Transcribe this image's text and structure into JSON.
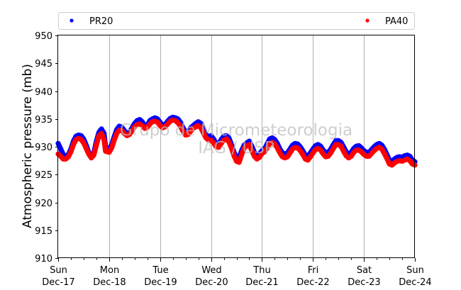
{
  "chart_data": {
    "type": "scatter",
    "ylabel": "Atmospheric pressure (mb)",
    "ylim": [
      910,
      950
    ],
    "yticks": [
      910,
      915,
      920,
      925,
      930,
      935,
      940,
      945,
      950
    ],
    "xlim_days": [
      17,
      24
    ],
    "xticks": [
      {
        "day": 17,
        "weekday": "Sun",
        "date": "Dec-17"
      },
      {
        "day": 18,
        "weekday": "Mon",
        "date": "Dec-18"
      },
      {
        "day": 19,
        "weekday": "Tue",
        "date": "Dec-19"
      },
      {
        "day": 20,
        "weekday": "Wed",
        "date": "Dec-20"
      },
      {
        "day": 21,
        "weekday": "Thu",
        "date": "Dec-21"
      },
      {
        "day": 22,
        "weekday": "Fri",
        "date": "Dec-22"
      },
      {
        "day": 23,
        "weekday": "Sat",
        "date": "Dec-23"
      },
      {
        "day": 24,
        "weekday": "Sun",
        "date": "Dec-24"
      }
    ],
    "grid": "vertical",
    "legend_position": "top",
    "watermark": [
      "Grupo de Micrometeorologia",
      "IAG / USP"
    ],
    "series": [
      {
        "name": "PR20",
        "color": "#0000ff",
        "points": [
          [
            17.0,
            930.6
          ],
          [
            17.05,
            929.6
          ],
          [
            17.1,
            928.6
          ],
          [
            17.15,
            928.3
          ],
          [
            17.2,
            928.6
          ],
          [
            17.25,
            929.6
          ],
          [
            17.3,
            931.0
          ],
          [
            17.35,
            931.9
          ],
          [
            17.4,
            932.1
          ],
          [
            17.45,
            932.0
          ],
          [
            17.5,
            931.4
          ],
          [
            17.55,
            930.3
          ],
          [
            17.6,
            929.0
          ],
          [
            17.65,
            928.3
          ],
          [
            17.7,
            928.9
          ],
          [
            17.75,
            931.0
          ],
          [
            17.8,
            932.6
          ],
          [
            17.85,
            933.2
          ],
          [
            17.9,
            932.4
          ],
          [
            17.93,
            930.0
          ],
          [
            18.0,
            929.5
          ],
          [
            18.05,
            930.4
          ],
          [
            18.1,
            931.8
          ],
          [
            18.15,
            933.1
          ],
          [
            18.2,
            933.7
          ],
          [
            18.25,
            933.5
          ],
          [
            18.3,
            932.9
          ],
          [
            18.35,
            932.3
          ],
          [
            18.4,
            932.6
          ],
          [
            18.45,
            933.4
          ],
          [
            18.5,
            934.2
          ],
          [
            18.55,
            934.7
          ],
          [
            18.6,
            934.9
          ],
          [
            18.65,
            934.5
          ],
          [
            18.7,
            933.7
          ],
          [
            18.75,
            933.9
          ],
          [
            18.8,
            934.7
          ],
          [
            18.85,
            935.0
          ],
          [
            18.9,
            935.2
          ],
          [
            18.95,
            935.0
          ],
          [
            19.0,
            934.4
          ],
          [
            19.05,
            933.9
          ],
          [
            19.1,
            934.0
          ],
          [
            19.15,
            934.6
          ],
          [
            19.2,
            935.1
          ],
          [
            19.25,
            935.3
          ],
          [
            19.3,
            935.2
          ],
          [
            19.35,
            935.0
          ],
          [
            19.4,
            934.4
          ],
          [
            19.45,
            933.4
          ],
          [
            19.5,
            932.7
          ],
          [
            19.55,
            932.8
          ],
          [
            19.6,
            933.4
          ],
          [
            19.65,
            933.8
          ],
          [
            19.7,
            934.2
          ],
          [
            19.75,
            934.5
          ],
          [
            19.8,
            934.2
          ],
          [
            19.85,
            933.2
          ],
          [
            19.9,
            932.2
          ],
          [
            19.95,
            931.8
          ],
          [
            20.0,
            932.0
          ],
          [
            20.05,
            931.4
          ],
          [
            20.1,
            930.6
          ],
          [
            20.15,
            930.5
          ],
          [
            20.2,
            931.3
          ],
          [
            20.25,
            931.9
          ],
          [
            20.3,
            932.0
          ],
          [
            20.35,
            931.6
          ],
          [
            20.4,
            930.4
          ],
          [
            20.45,
            929.0
          ],
          [
            20.5,
            928.1
          ],
          [
            20.55,
            928.0
          ],
          [
            20.6,
            929.3
          ],
          [
            20.65,
            930.3
          ],
          [
            20.7,
            930.7
          ],
          [
            20.75,
            931.0
          ],
          [
            20.8,
            930.1
          ],
          [
            20.85,
            929.0
          ],
          [
            20.9,
            928.5
          ],
          [
            20.95,
            928.7
          ],
          [
            21.0,
            929.3
          ],
          [
            21.05,
            929.6
          ],
          [
            21.1,
            930.5
          ],
          [
            21.15,
            931.4
          ],
          [
            21.2,
            931.6
          ],
          [
            21.25,
            931.3
          ],
          [
            21.3,
            930.6
          ],
          [
            21.35,
            929.6
          ],
          [
            21.4,
            928.9
          ],
          [
            21.45,
            928.7
          ],
          [
            21.5,
            928.9
          ],
          [
            21.55,
            929.6
          ],
          [
            21.6,
            930.3
          ],
          [
            21.65,
            930.6
          ],
          [
            21.7,
            930.5
          ],
          [
            21.75,
            930.0
          ],
          [
            21.8,
            929.3
          ],
          [
            21.85,
            928.5
          ],
          [
            21.9,
            928.3
          ],
          [
            21.95,
            928.9
          ],
          [
            22.0,
            929.6
          ],
          [
            22.05,
            930.2
          ],
          [
            22.1,
            930.4
          ],
          [
            22.15,
            930.1
          ],
          [
            22.2,
            929.4
          ],
          [
            22.25,
            928.9
          ],
          [
            22.3,
            929.0
          ],
          [
            22.35,
            929.6
          ],
          [
            22.4,
            930.4
          ],
          [
            22.45,
            931.1
          ],
          [
            22.5,
            931.1
          ],
          [
            22.55,
            930.8
          ],
          [
            22.6,
            930.0
          ],
          [
            22.65,
            929.1
          ],
          [
            22.7,
            928.7
          ],
          [
            22.75,
            929.0
          ],
          [
            22.8,
            929.7
          ],
          [
            22.85,
            930.1
          ],
          [
            22.9,
            930.2
          ],
          [
            22.95,
            929.8
          ],
          [
            23.0,
            929.3
          ],
          [
            23.05,
            929.0
          ],
          [
            23.1,
            929.0
          ],
          [
            23.15,
            929.5
          ],
          [
            23.2,
            930.0
          ],
          [
            23.25,
            930.4
          ],
          [
            23.3,
            930.6
          ],
          [
            23.35,
            930.3
          ],
          [
            23.4,
            929.6
          ],
          [
            23.45,
            928.6
          ],
          [
            23.5,
            927.6
          ],
          [
            23.55,
            927.4
          ],
          [
            23.6,
            927.8
          ],
          [
            23.65,
            928.1
          ],
          [
            23.7,
            928.2
          ],
          [
            23.75,
            928.1
          ],
          [
            23.8,
            928.4
          ],
          [
            23.85,
            928.5
          ],
          [
            23.9,
            928.3
          ],
          [
            23.95,
            927.6
          ],
          [
            24.0,
            927.3
          ]
        ]
      },
      {
        "name": "PA40",
        "color": "#ff0000",
        "points": [
          [
            17.0,
            928.7
          ],
          [
            17.05,
            928.3
          ],
          [
            17.1,
            927.8
          ],
          [
            17.15,
            927.8
          ],
          [
            17.2,
            928.2
          ],
          [
            17.25,
            929.1
          ],
          [
            17.3,
            930.4
          ],
          [
            17.35,
            931.3
          ],
          [
            17.4,
            931.5
          ],
          [
            17.45,
            931.3
          ],
          [
            17.5,
            930.7
          ],
          [
            17.55,
            929.7
          ],
          [
            17.6,
            928.7
          ],
          [
            17.65,
            928.0
          ],
          [
            17.7,
            928.5
          ],
          [
            17.75,
            930.3
          ],
          [
            17.8,
            932.0
          ],
          [
            17.85,
            932.4
          ],
          [
            17.9,
            931.3
          ],
          [
            17.93,
            929.2
          ],
          [
            18.0,
            929.0
          ],
          [
            18.05,
            929.8
          ],
          [
            18.1,
            931.2
          ],
          [
            18.15,
            932.4
          ],
          [
            18.2,
            933.0
          ],
          [
            18.25,
            932.9
          ],
          [
            18.3,
            932.4
          ],
          [
            18.35,
            932.0
          ],
          [
            18.4,
            932.2
          ],
          [
            18.45,
            932.9
          ],
          [
            18.5,
            933.6
          ],
          [
            18.55,
            934.0
          ],
          [
            18.6,
            934.1
          ],
          [
            18.65,
            933.8
          ],
          [
            18.7,
            933.3
          ],
          [
            18.75,
            933.5
          ],
          [
            18.8,
            934.1
          ],
          [
            18.85,
            934.5
          ],
          [
            18.9,
            934.6
          ],
          [
            18.95,
            934.4
          ],
          [
            19.0,
            933.8
          ],
          [
            19.05,
            933.4
          ],
          [
            19.1,
            933.6
          ],
          [
            19.15,
            934.1
          ],
          [
            19.2,
            934.6
          ],
          [
            19.25,
            934.8
          ],
          [
            19.3,
            934.7
          ],
          [
            19.35,
            934.3
          ],
          [
            19.4,
            933.7
          ],
          [
            19.45,
            932.8
          ],
          [
            19.5,
            932.1
          ],
          [
            19.55,
            932.2
          ],
          [
            19.6,
            932.8
          ],
          [
            19.65,
            933.3
          ],
          [
            19.7,
            933.6
          ],
          [
            19.75,
            933.8
          ],
          [
            19.8,
            933.4
          ],
          [
            19.85,
            932.5
          ],
          [
            19.9,
            931.6
          ],
          [
            19.95,
            931.2
          ],
          [
            20.0,
            931.2
          ],
          [
            20.05,
            930.7
          ],
          [
            20.1,
            930.0
          ],
          [
            20.15,
            929.9
          ],
          [
            20.2,
            930.6
          ],
          [
            20.25,
            931.2
          ],
          [
            20.3,
            931.4
          ],
          [
            20.35,
            930.9
          ],
          [
            20.4,
            929.8
          ],
          [
            20.45,
            928.4
          ],
          [
            20.5,
            927.4
          ],
          [
            20.55,
            927.2
          ],
          [
            20.6,
            928.6
          ],
          [
            20.65,
            929.8
          ],
          [
            20.7,
            930.2
          ],
          [
            20.75,
            930.4
          ],
          [
            20.8,
            929.3
          ],
          [
            20.85,
            928.3
          ],
          [
            20.9,
            927.8
          ],
          [
            20.95,
            928.1
          ],
          [
            21.0,
            928.8
          ],
          [
            21.05,
            929.1
          ],
          [
            21.1,
            929.8
          ],
          [
            21.15,
            930.6
          ],
          [
            21.2,
            930.8
          ],
          [
            21.25,
            930.5
          ],
          [
            21.3,
            929.8
          ],
          [
            21.35,
            928.9
          ],
          [
            21.4,
            928.2
          ],
          [
            21.45,
            928.0
          ],
          [
            21.5,
            928.2
          ],
          [
            21.55,
            928.9
          ],
          [
            21.6,
            929.6
          ],
          [
            21.65,
            929.9
          ],
          [
            21.7,
            929.8
          ],
          [
            21.75,
            929.3
          ],
          [
            21.8,
            928.6
          ],
          [
            21.85,
            927.8
          ],
          [
            21.9,
            927.6
          ],
          [
            21.95,
            928.2
          ],
          [
            22.0,
            928.9
          ],
          [
            22.05,
            929.5
          ],
          [
            22.1,
            929.7
          ],
          [
            22.15,
            929.4
          ],
          [
            22.2,
            928.7
          ],
          [
            22.25,
            928.2
          ],
          [
            22.3,
            928.3
          ],
          [
            22.35,
            928.9
          ],
          [
            22.4,
            929.7
          ],
          [
            22.45,
            930.4
          ],
          [
            22.5,
            930.4
          ],
          [
            22.55,
            930.1
          ],
          [
            22.6,
            929.2
          ],
          [
            22.65,
            928.4
          ],
          [
            22.7,
            928.0
          ],
          [
            22.75,
            928.3
          ],
          [
            22.8,
            929.0
          ],
          [
            22.85,
            929.4
          ],
          [
            22.9,
            929.4
          ],
          [
            22.95,
            929.1
          ],
          [
            23.0,
            928.6
          ],
          [
            23.05,
            928.3
          ],
          [
            23.1,
            928.3
          ],
          [
            23.15,
            928.8
          ],
          [
            23.2,
            929.3
          ],
          [
            23.25,
            929.7
          ],
          [
            23.3,
            929.9
          ],
          [
            23.35,
            929.6
          ],
          [
            23.4,
            928.8
          ],
          [
            23.45,
            927.9
          ],
          [
            23.5,
            926.9
          ],
          [
            23.55,
            926.7
          ],
          [
            23.6,
            927.1
          ],
          [
            23.65,
            927.4
          ],
          [
            23.7,
            927.5
          ],
          [
            23.75,
            927.4
          ],
          [
            23.8,
            927.6
          ],
          [
            23.85,
            927.8
          ],
          [
            23.9,
            927.5
          ],
          [
            23.95,
            926.9
          ],
          [
            24.0,
            926.7
          ]
        ]
      }
    ]
  }
}
